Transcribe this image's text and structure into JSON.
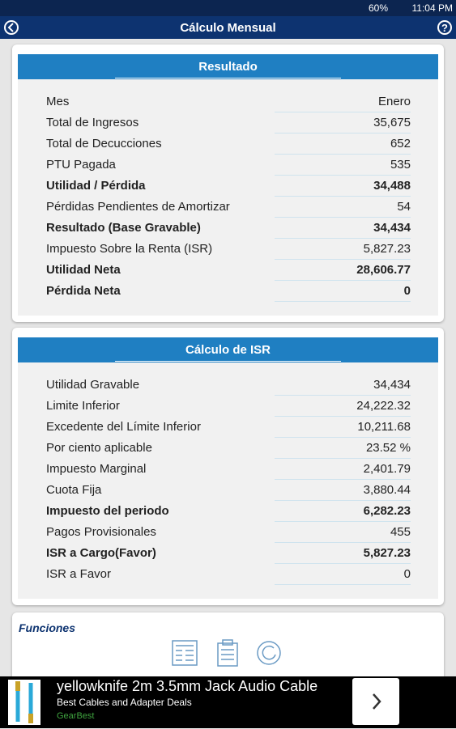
{
  "status_bar": {
    "battery": "60%",
    "time": "11:04 PM"
  },
  "app_bar": {
    "title": "Cálculo Mensual"
  },
  "cards": [
    {
      "title": "Resultado",
      "rows": [
        {
          "label": "Mes",
          "value": "Enero",
          "bold": false
        },
        {
          "label": "Total de Ingresos",
          "value": "35,675",
          "bold": false
        },
        {
          "label": "Total de Decucciones",
          "value": "652",
          "bold": false
        },
        {
          "label": "PTU Pagada",
          "value": "535",
          "bold": false
        },
        {
          "label": "Utilidad / Pérdida",
          "value": "34,488",
          "bold": true
        },
        {
          "label": "Pérdidas Pendientes de Amortizar",
          "value": "54",
          "bold": false
        },
        {
          "label": "Resultado (Base Gravable)",
          "value": "34,434",
          "bold": true
        },
        {
          "label": "Impuesto Sobre la Renta (ISR)",
          "value": "5,827.23",
          "bold": false
        },
        {
          "label": "Utilidad Neta",
          "value": "28,606.77",
          "bold": true
        },
        {
          "label": "Pérdida Neta",
          "value": "0",
          "bold": true
        }
      ]
    },
    {
      "title": "Cálculo de ISR",
      "rows": [
        {
          "label": "Utilidad Gravable",
          "value": "34,434",
          "bold": false
        },
        {
          "label": "Limite Inferior",
          "value": "24,222.32",
          "bold": false
        },
        {
          "label": "Excedente del Límite Inferior",
          "value": "10,211.68",
          "bold": false
        },
        {
          "label": "Por ciento aplicable",
          "value": "23.52 %",
          "bold": false
        },
        {
          "label": "Impuesto Marginal",
          "value": "2,401.79",
          "bold": false
        },
        {
          "label": "Cuota Fija",
          "value": "3,880.44",
          "bold": false
        },
        {
          "label": "Impuesto del periodo",
          "value": "6,282.23",
          "bold": true
        },
        {
          "label": "Pagos Provisionales",
          "value": "455",
          "bold": false
        },
        {
          "label": "ISR a Cargo(Favor)",
          "value": "5,827.23",
          "bold": true
        },
        {
          "label": "ISR a Favor",
          "value": "0",
          "bold": false
        }
      ]
    }
  ],
  "functions": {
    "title": "Funciones"
  },
  "ad": {
    "headline": "yellowknife 2m 3.5mm Jack Audio Cable",
    "subtitle": "Best Cables and Adapter Deals",
    "advertiser": "GearBest"
  }
}
